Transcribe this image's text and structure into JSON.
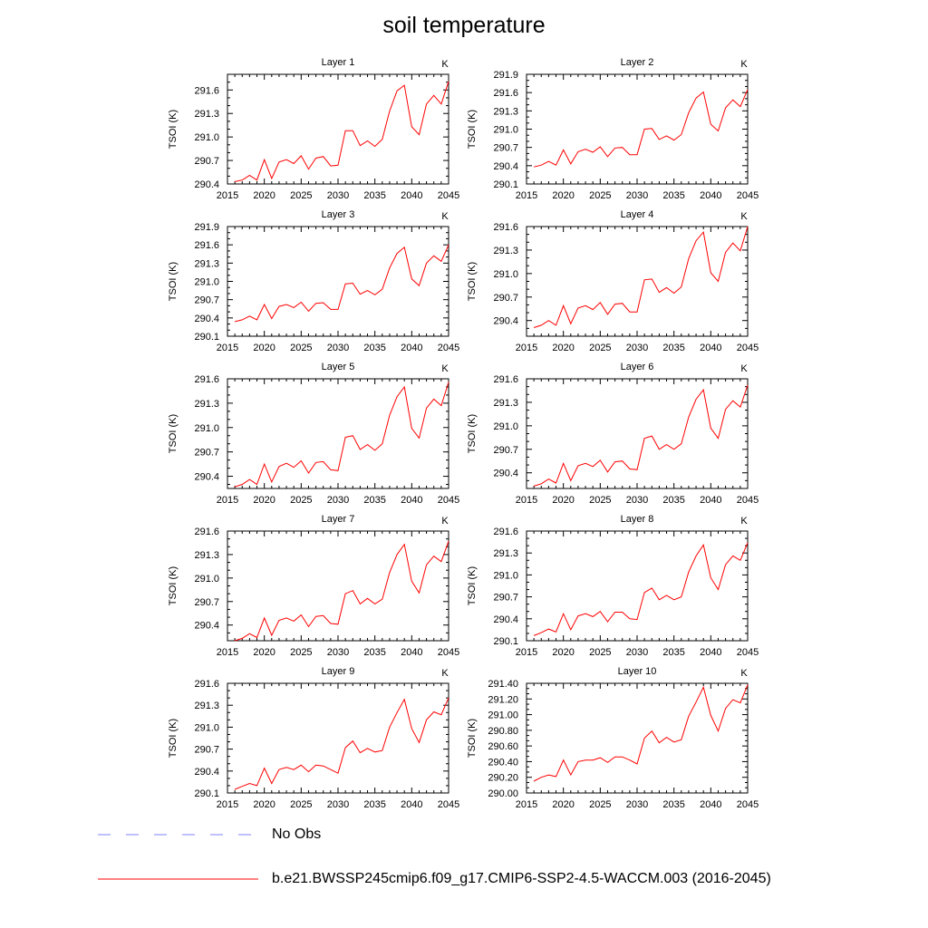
{
  "title": "soil temperature",
  "legend": {
    "obs_label": "No Obs",
    "obs_color": "#8080ff",
    "model_label": "b.e21.BWSSP245cmip6.f09_g17.CMIP6-SSP2-4.5-WACCM.003 (2016-2045)",
    "model_color": "#ff0000"
  },
  "chart_data": [
    {
      "type": "line",
      "title": "Layer 1",
      "units": "K",
      "ylabel": "TSOI  (K)",
      "xlim": [
        2015,
        2045
      ],
      "xticks": [
        "2015",
        "2020",
        "2025",
        "2030",
        "2035",
        "2040",
        "2045"
      ],
      "ylim": [
        290.4,
        291.8
      ],
      "yticks": [
        "290.4",
        "290.7",
        "291.0",
        "291.3",
        "291.6"
      ],
      "x": [
        2016,
        2017,
        2018,
        2019,
        2020,
        2021,
        2022,
        2023,
        2024,
        2025,
        2026,
        2027,
        2028,
        2029,
        2030,
        2031,
        2032,
        2033,
        2034,
        2035,
        2036,
        2037,
        2038,
        2039,
        2040,
        2041,
        2042,
        2043,
        2044,
        2045
      ],
      "y": [
        290.43,
        290.45,
        290.51,
        290.45,
        290.71,
        290.47,
        290.68,
        290.71,
        290.66,
        290.76,
        290.59,
        290.73,
        290.75,
        290.63,
        290.64,
        291.08,
        291.08,
        290.89,
        290.95,
        290.88,
        290.97,
        291.33,
        291.59,
        291.66,
        291.13,
        291.03,
        291.42,
        291.53,
        291.42,
        291.71
      ]
    },
    {
      "type": "line",
      "title": "Layer 2",
      "units": "K",
      "ylabel": "TSOI  (K)",
      "xlim": [
        2015,
        2045
      ],
      "xticks": [
        "2015",
        "2020",
        "2025",
        "2030",
        "2035",
        "2040",
        "2045"
      ],
      "ylim": [
        290.1,
        291.9
      ],
      "yticks": [
        "290.1",
        "290.4",
        "290.7",
        "291.0",
        "291.3",
        "291.6",
        "291.9"
      ],
      "x": [
        2016,
        2017,
        2018,
        2019,
        2020,
        2021,
        2022,
        2023,
        2024,
        2025,
        2026,
        2027,
        2028,
        2029,
        2030,
        2031,
        2032,
        2033,
        2034,
        2035,
        2036,
        2037,
        2038,
        2039,
        2040,
        2041,
        2042,
        2043,
        2044,
        2045
      ],
      "y": [
        290.38,
        290.41,
        290.47,
        290.41,
        290.66,
        290.43,
        290.63,
        290.67,
        290.62,
        290.71,
        290.55,
        290.69,
        290.7,
        290.58,
        290.58,
        291.0,
        291.01,
        290.83,
        290.89,
        290.82,
        290.91,
        291.27,
        291.51,
        291.61,
        291.08,
        290.97,
        291.35,
        291.48,
        291.37,
        291.65
      ]
    },
    {
      "type": "line",
      "title": "Layer 3",
      "units": "K",
      "ylabel": "TSOI  (K)",
      "xlim": [
        2015,
        2045
      ],
      "xticks": [
        "2015",
        "2020",
        "2025",
        "2030",
        "2035",
        "2040",
        "2045"
      ],
      "ylim": [
        290.1,
        291.9
      ],
      "yticks": [
        "290.1",
        "290.4",
        "290.7",
        "291.0",
        "291.3",
        "291.6",
        "291.9"
      ],
      "x": [
        2016,
        2017,
        2018,
        2019,
        2020,
        2021,
        2022,
        2023,
        2024,
        2025,
        2026,
        2027,
        2028,
        2029,
        2030,
        2031,
        2032,
        2033,
        2034,
        2035,
        2036,
        2037,
        2038,
        2039,
        2040,
        2041,
        2042,
        2043,
        2044,
        2045
      ],
      "y": [
        290.34,
        290.37,
        290.43,
        290.37,
        290.62,
        290.39,
        290.59,
        290.62,
        290.57,
        290.66,
        290.51,
        290.64,
        290.65,
        290.54,
        290.54,
        290.96,
        290.97,
        290.79,
        290.85,
        290.78,
        290.87,
        291.22,
        291.46,
        291.56,
        291.04,
        290.93,
        291.3,
        291.42,
        291.33,
        291.6
      ]
    },
    {
      "type": "line",
      "title": "Layer 4",
      "units": "K",
      "ylabel": "TSOI  (K)",
      "xlim": [
        2015,
        2045
      ],
      "xticks": [
        "2015",
        "2020",
        "2025",
        "2030",
        "2035",
        "2040",
        "2045"
      ],
      "ylim": [
        290.2,
        291.6
      ],
      "yticks": [
        "290.4",
        "290.7",
        "291.0",
        "291.3",
        "291.6"
      ],
      "x": [
        2016,
        2017,
        2018,
        2019,
        2020,
        2021,
        2022,
        2023,
        2024,
        2025,
        2026,
        2027,
        2028,
        2029,
        2030,
        2031,
        2032,
        2033,
        2034,
        2035,
        2036,
        2037,
        2038,
        2039,
        2040,
        2041,
        2042,
        2043,
        2044,
        2045
      ],
      "y": [
        290.31,
        290.34,
        290.4,
        290.34,
        290.59,
        290.36,
        290.56,
        290.59,
        290.54,
        290.63,
        290.48,
        290.61,
        290.62,
        290.51,
        290.51,
        290.92,
        290.93,
        290.76,
        290.82,
        290.75,
        290.83,
        291.19,
        291.42,
        291.53,
        291.01,
        290.9,
        291.27,
        291.39,
        291.29,
        291.6
      ]
    },
    {
      "type": "line",
      "title": "Layer 5",
      "units": "K",
      "ylabel": "TSOI  (K)",
      "xlim": [
        2015,
        2045
      ],
      "xticks": [
        "2015",
        "2020",
        "2025",
        "2030",
        "2035",
        "2040",
        "2045"
      ],
      "ylim": [
        290.25,
        291.6
      ],
      "yticks": [
        "290.4",
        "290.7",
        "291.0",
        "291.3",
        "291.6"
      ],
      "x": [
        2016,
        2017,
        2018,
        2019,
        2020,
        2021,
        2022,
        2023,
        2024,
        2025,
        2026,
        2027,
        2028,
        2029,
        2030,
        2031,
        2032,
        2033,
        2034,
        2035,
        2036,
        2037,
        2038,
        2039,
        2040,
        2041,
        2042,
        2043,
        2044,
        2045
      ],
      "y": [
        290.27,
        290.3,
        290.36,
        290.3,
        290.55,
        290.33,
        290.52,
        290.56,
        290.51,
        290.59,
        290.44,
        290.57,
        290.58,
        290.48,
        290.47,
        290.88,
        290.9,
        290.73,
        290.79,
        290.72,
        290.8,
        291.15,
        291.38,
        291.5,
        290.99,
        290.87,
        291.24,
        291.35,
        291.27,
        291.56
      ]
    },
    {
      "type": "line",
      "title": "Layer 6",
      "units": "K",
      "ylabel": "TSOI  (K)",
      "xlim": [
        2015,
        2045
      ],
      "xticks": [
        "2015",
        "2020",
        "2025",
        "2030",
        "2035",
        "2040",
        "2045"
      ],
      "ylim": [
        290.2,
        291.6
      ],
      "yticks": [
        "290.4",
        "290.7",
        "291.0",
        "291.3",
        "291.6"
      ],
      "x": [
        2016,
        2017,
        2018,
        2019,
        2020,
        2021,
        2022,
        2023,
        2024,
        2025,
        2026,
        2027,
        2028,
        2029,
        2030,
        2031,
        2032,
        2033,
        2034,
        2035,
        2036,
        2037,
        2038,
        2039,
        2040,
        2041,
        2042,
        2043,
        2044,
        2045
      ],
      "y": [
        290.23,
        290.26,
        290.32,
        290.27,
        290.52,
        290.3,
        290.49,
        290.52,
        290.48,
        290.56,
        290.41,
        290.54,
        290.55,
        290.45,
        290.44,
        290.84,
        290.87,
        290.7,
        290.76,
        290.7,
        290.77,
        291.11,
        291.34,
        291.46,
        290.97,
        290.84,
        291.21,
        291.32,
        291.24,
        291.52
      ]
    },
    {
      "type": "line",
      "title": "Layer 7",
      "units": "K",
      "ylabel": "TSOI  (K)",
      "xlim": [
        2015,
        2045
      ],
      "xticks": [
        "2015",
        "2020",
        "2025",
        "2030",
        "2035",
        "2040",
        "2045"
      ],
      "ylim": [
        290.2,
        291.6
      ],
      "yticks": [
        "290.4",
        "290.7",
        "291.0",
        "291.3",
        "291.6"
      ],
      "x": [
        2016,
        2017,
        2018,
        2019,
        2020,
        2021,
        2022,
        2023,
        2024,
        2025,
        2026,
        2027,
        2028,
        2029,
        2030,
        2031,
        2032,
        2033,
        2034,
        2035,
        2036,
        2037,
        2038,
        2039,
        2040,
        2041,
        2042,
        2043,
        2044,
        2045
      ],
      "y": [
        290.2,
        290.23,
        290.29,
        290.24,
        290.49,
        290.27,
        290.46,
        290.49,
        290.45,
        290.53,
        290.38,
        290.51,
        290.52,
        290.42,
        290.41,
        290.8,
        290.84,
        290.67,
        290.74,
        290.67,
        290.73,
        291.07,
        291.3,
        291.43,
        290.96,
        290.81,
        291.17,
        291.28,
        291.21,
        291.47
      ]
    },
    {
      "type": "line",
      "title": "Layer 8",
      "units": "K",
      "ylabel": "TSOI  (K)",
      "xlim": [
        2015,
        2045
      ],
      "xticks": [
        "2015",
        "2020",
        "2025",
        "2030",
        "2035",
        "2040",
        "2045"
      ],
      "ylim": [
        290.1,
        291.6
      ],
      "yticks": [
        "290.1",
        "290.4",
        "290.7",
        "291.0",
        "291.3",
        "291.6"
      ],
      "x": [
        2016,
        2017,
        2018,
        2019,
        2020,
        2021,
        2022,
        2023,
        2024,
        2025,
        2026,
        2027,
        2028,
        2029,
        2030,
        2031,
        2032,
        2033,
        2034,
        2035,
        2036,
        2037,
        2038,
        2039,
        2040,
        2041,
        2042,
        2043,
        2044,
        2045
      ],
      "y": [
        290.17,
        290.21,
        290.26,
        290.22,
        290.47,
        290.25,
        290.44,
        290.47,
        290.43,
        290.5,
        290.36,
        290.49,
        290.49,
        290.4,
        290.39,
        290.76,
        290.82,
        290.66,
        290.72,
        290.66,
        290.7,
        291.04,
        291.26,
        291.41,
        290.96,
        290.8,
        291.14,
        291.26,
        291.2,
        291.44
      ]
    },
    {
      "type": "line",
      "title": "Layer 9",
      "units": "K",
      "ylabel": "TSOI  (K)",
      "xlim": [
        2015,
        2045
      ],
      "xticks": [
        "2015",
        "2020",
        "2025",
        "2030",
        "2035",
        "2040",
        "2045"
      ],
      "ylim": [
        290.1,
        291.6
      ],
      "yticks": [
        "290.1",
        "290.4",
        "290.7",
        "291.0",
        "291.3",
        "291.6"
      ],
      "x": [
        2016,
        2017,
        2018,
        2019,
        2020,
        2021,
        2022,
        2023,
        2024,
        2025,
        2026,
        2027,
        2028,
        2029,
        2030,
        2031,
        2032,
        2033,
        2034,
        2035,
        2036,
        2037,
        2038,
        2039,
        2040,
        2041,
        2042,
        2043,
        2044,
        2045
      ],
      "y": [
        290.15,
        290.19,
        290.23,
        290.2,
        290.44,
        290.23,
        290.42,
        290.45,
        290.42,
        290.48,
        290.39,
        290.48,
        290.47,
        290.42,
        290.37,
        290.72,
        290.81,
        290.65,
        290.71,
        290.66,
        290.68,
        291.0,
        291.2,
        291.38,
        290.98,
        290.79,
        291.1,
        291.21,
        291.17,
        291.4
      ]
    },
    {
      "type": "line",
      "title": "Layer 10",
      "units": "K",
      "ylabel": "TSOI  (K)",
      "xlim": [
        2015,
        2045
      ],
      "xticks": [
        "2015",
        "2020",
        "2025",
        "2030",
        "2035",
        "2040",
        "2045"
      ],
      "ylim": [
        290.0,
        291.4
      ],
      "yticks": [
        "290.00",
        "290.20",
        "290.40",
        "290.60",
        "290.80",
        "291.00",
        "291.20",
        "291.40"
      ],
      "x": [
        2016,
        2017,
        2018,
        2019,
        2020,
        2021,
        2022,
        2023,
        2024,
        2025,
        2026,
        2027,
        2028,
        2029,
        2030,
        2031,
        2032,
        2033,
        2034,
        2035,
        2036,
        2037,
        2038,
        2039,
        2040,
        2041,
        2042,
        2043,
        2044,
        2045
      ],
      "y": [
        290.15,
        290.2,
        290.23,
        290.21,
        290.42,
        290.23,
        290.4,
        290.42,
        290.42,
        290.45,
        290.39,
        290.46,
        290.46,
        290.42,
        290.37,
        290.7,
        290.79,
        290.64,
        290.71,
        290.65,
        290.68,
        290.98,
        291.16,
        291.35,
        290.99,
        290.79,
        291.08,
        291.19,
        291.15,
        291.38
      ]
    }
  ]
}
